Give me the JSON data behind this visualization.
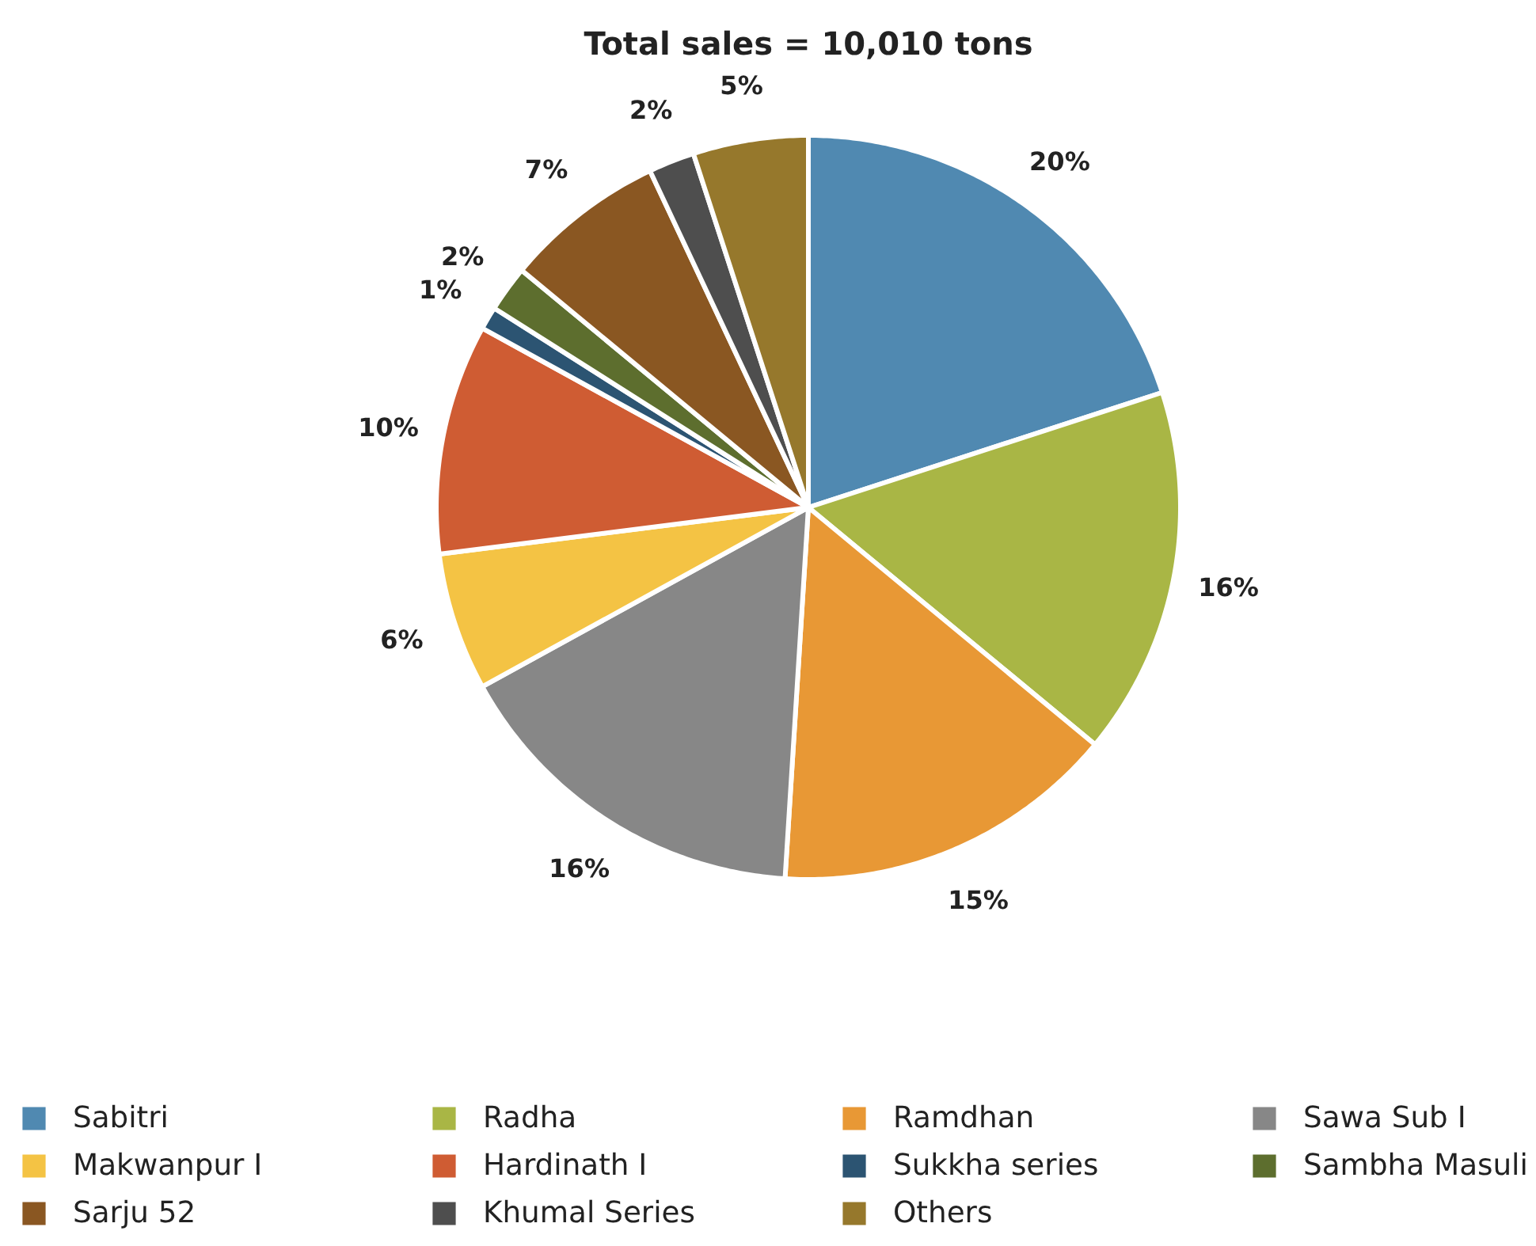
{
  "chart_data": {
    "type": "pie",
    "title": "Total sales = 10,010 tons",
    "categories": [
      "Sabitri",
      "Radha",
      "Ramdhan",
      "Sawa Sub I",
      "Makwanpur I",
      "Hardinath I",
      "Sukkha series",
      "Sambha Masuli",
      "Sarju 52",
      "Khumal Series",
      "Others"
    ],
    "values": [
      20,
      16,
      15,
      16,
      6,
      10,
      1,
      2,
      7,
      2,
      5
    ],
    "colors": [
      "#5089b1",
      "#a9b645",
      "#e89835",
      "#878787",
      "#f4c344",
      "#cf5c33",
      "#2c5472",
      "#5d6e2e",
      "#8a5722",
      "#4e4e4e",
      "#96782c"
    ],
    "value_labels": [
      "20%",
      "16%",
      "15%",
      "16%",
      "6%",
      "10%",
      "1%",
      "2%",
      "7%",
      "2%",
      "5%"
    ],
    "legend": "bottom"
  }
}
